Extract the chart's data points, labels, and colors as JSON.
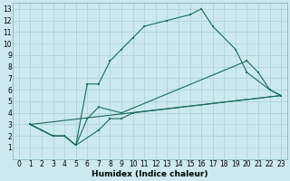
{
  "xlabel": "Humidex (Indice chaleur)",
  "bg_color": "#cce9f0",
  "grid_color": "#aacdd6",
  "line_color": "#1a6b5a",
  "xlim": [
    -0.5,
    23.5
  ],
  "ylim": [
    0,
    13.5
  ],
  "xticks": [
    0,
    1,
    2,
    3,
    4,
    5,
    6,
    7,
    8,
    9,
    10,
    11,
    12,
    13,
    14,
    15,
    16,
    17,
    18,
    19,
    20,
    21,
    22,
    23
  ],
  "yticks": [
    1,
    2,
    3,
    4,
    5,
    6,
    7,
    8,
    9,
    10,
    11,
    12,
    13
  ],
  "line1": [
    [
      1,
      3
    ],
    [
      2,
      2.5
    ],
    [
      3,
      2
    ],
    [
      4,
      2
    ],
    [
      5,
      1.2
    ],
    [
      6,
      6.5
    ],
    [
      7,
      6.5
    ],
    [
      8,
      8.5
    ],
    [
      9,
      9.5
    ],
    [
      10,
      10.5
    ],
    [
      11,
      11.5
    ],
    [
      13,
      12
    ],
    [
      15,
      12.5
    ],
    [
      16,
      13
    ],
    [
      17,
      11.5
    ],
    [
      19,
      9.5
    ],
    [
      20,
      7.5
    ],
    [
      22,
      6
    ],
    [
      23,
      5.5
    ]
  ],
  "line2": [
    [
      1,
      3
    ],
    [
      2,
      2.5
    ],
    [
      3,
      2
    ],
    [
      4,
      2
    ],
    [
      5,
      1.2
    ],
    [
      6,
      3.5
    ],
    [
      7,
      4.5
    ],
    [
      9,
      4
    ],
    [
      20,
      8.5
    ],
    [
      21,
      7.5
    ],
    [
      22,
      6
    ],
    [
      23,
      5.5
    ]
  ],
  "line3": [
    [
      1,
      3
    ],
    [
      23,
      5.5
    ]
  ],
  "line4": [
    [
      1,
      3
    ],
    [
      2,
      2.5
    ],
    [
      3,
      2
    ],
    [
      4,
      2
    ],
    [
      5,
      1.2
    ],
    [
      7,
      2.5
    ],
    [
      8,
      3.5
    ],
    [
      9,
      3.5
    ],
    [
      10,
      4
    ],
    [
      23,
      5.5
    ]
  ]
}
